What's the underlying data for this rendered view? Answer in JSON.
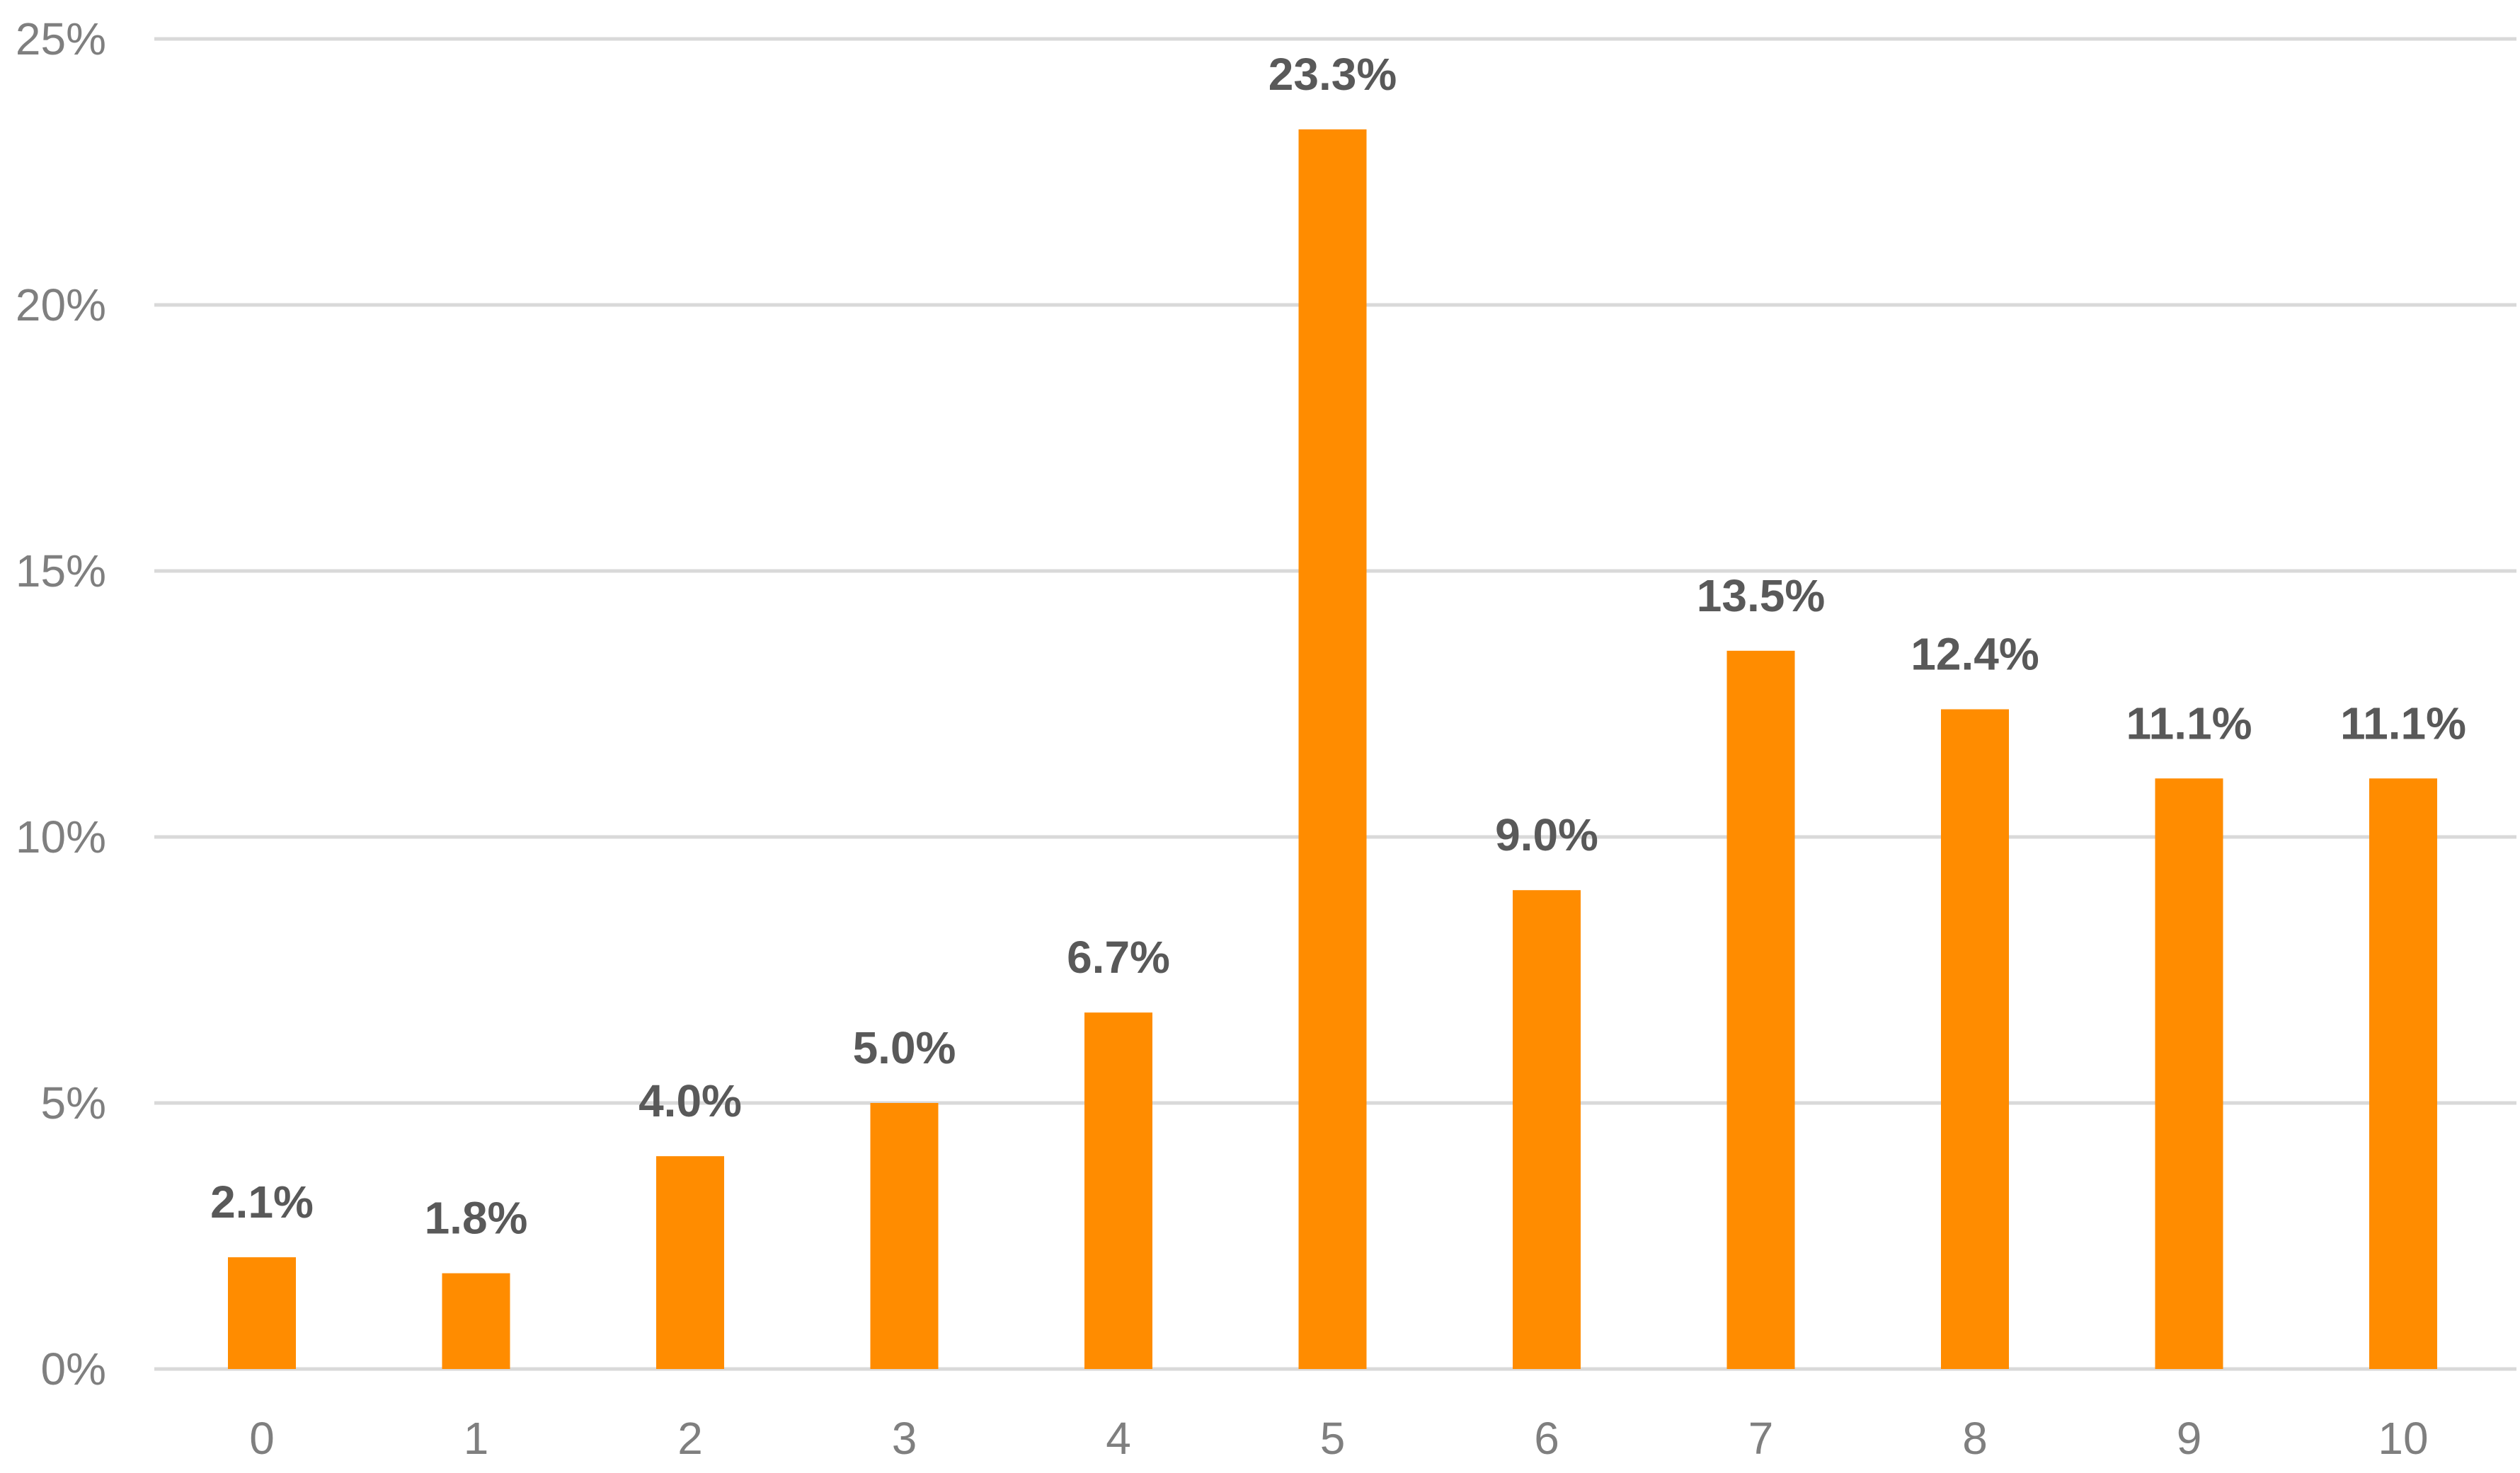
{
  "chart_data": {
    "type": "bar",
    "categories": [
      "0",
      "1",
      "2",
      "3",
      "4",
      "5",
      "6",
      "7",
      "8",
      "9",
      "10"
    ],
    "values": [
      2.1,
      1.8,
      4.0,
      5.0,
      6.7,
      23.3,
      9.0,
      13.5,
      12.4,
      11.1,
      11.1
    ],
    "value_labels": [
      "2.1%",
      "1.8%",
      "4.0%",
      "5.0%",
      "6.7%",
      "23.3%",
      "9.0%",
      "13.5%",
      "12.4%",
      "11.1%",
      "11.1%"
    ],
    "y_ticks": [
      {
        "value": 0,
        "label": "0%"
      },
      {
        "value": 5,
        "label": "5%"
      },
      {
        "value": 10,
        "label": "10%"
      },
      {
        "value": 15,
        "label": "15%"
      },
      {
        "value": 20,
        "label": "20%"
      },
      {
        "value": 25,
        "label": "25%"
      }
    ],
    "ylim": [
      0,
      25
    ],
    "title": "",
    "xlabel": "",
    "ylabel": "",
    "grid": true,
    "legend": "none",
    "colors": {
      "bar": "#ff8c00",
      "grid": "#d9d9d9",
      "tick_text": "#7f7f7f",
      "label_text": "#595959"
    }
  }
}
